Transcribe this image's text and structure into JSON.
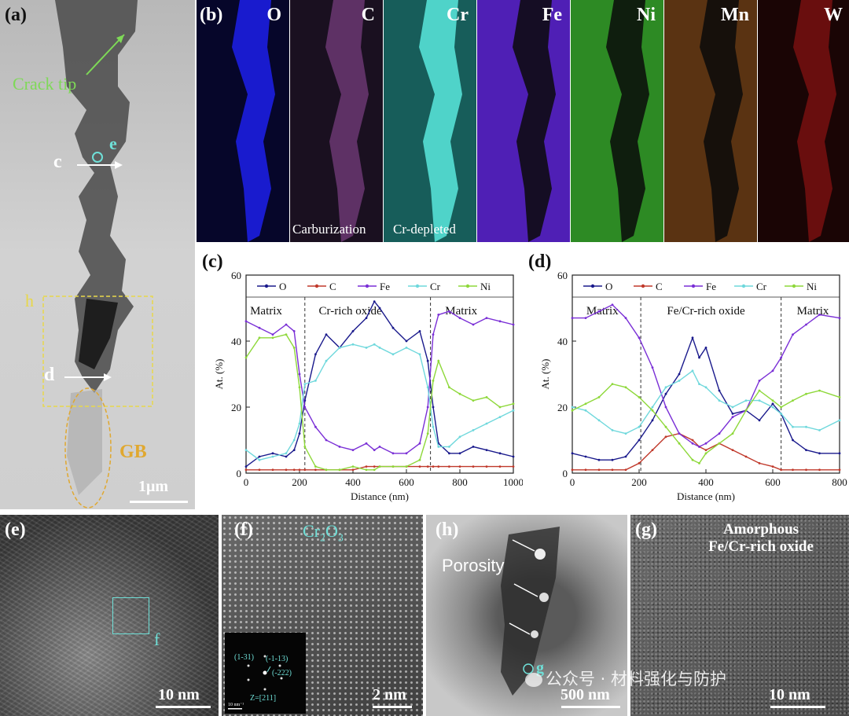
{
  "panel_a": {
    "label": "(a)",
    "crack_tip": "Crack tip",
    "marker_e": "e",
    "marker_c": "c",
    "marker_h": "h",
    "marker_d": "d",
    "gb": "GB",
    "scale": "1μm"
  },
  "panel_b": {
    "label": "(b)",
    "maps": [
      {
        "element": "O",
        "color": "#1c1ee0",
        "bg": "#06062a"
      },
      {
        "element": "C",
        "color": "#e070e8",
        "bg": "#1a1020"
      },
      {
        "element": "Cr",
        "color": "#55e0d5",
        "bg": "#175d5a"
      },
      {
        "element": "Fe",
        "color": "#8a3cf0",
        "bg": "#4f1fb5"
      },
      {
        "element": "Ni",
        "color": "#7ef54a",
        "bg": "#2d8a24"
      },
      {
        "element": "Mn",
        "color": "#e0962a",
        "bg": "#5a3312"
      },
      {
        "element": "W",
        "color": "#ff2020",
        "bg": "#1a0505"
      }
    ],
    "caption_c": "Carburization",
    "caption_cr": "Cr-depleted"
  },
  "panel_c": {
    "label": "(c)"
  },
  "panel_d": {
    "label": "(d)"
  },
  "panel_e": {
    "label": "(e)",
    "marker_f": "f",
    "scale": "10 nm"
  },
  "panel_f": {
    "label": "(f)",
    "phase_base": "Cr",
    "phase_sub1": "2",
    "phase_mid": "O",
    "phase_sub2": "3",
    "diff_spots": [
      "(1-31)",
      "(-1-13)",
      "(-222)"
    ],
    "zone": "Z=[211]",
    "inset_scale": "10 nm⁻¹",
    "scale": "2 nm"
  },
  "panel_h": {
    "label": "(h)",
    "porosity": "Porosity",
    "marker_g": "g",
    "scale": "500 nm"
  },
  "panel_g": {
    "label": "(g)",
    "title_line1": "Amorphous",
    "title_line2": "Fe/Cr-rich oxide",
    "scale": "10 nm"
  },
  "watermark": "公众号 · 材料强化与防护",
  "chart_data": [
    {
      "type": "line",
      "panel": "(c)",
      "xlabel": "Distance (nm)",
      "ylabel": "At. (%)",
      "xlim": [
        0,
        1000
      ],
      "ylim": [
        0,
        60
      ],
      "xticks": [
        0,
        200,
        400,
        600,
        800,
        1000
      ],
      "yticks": [
        0,
        20,
        40,
        60
      ],
      "legend_position": "top",
      "regions": [
        "Matrix",
        "Cr-rich oxide",
        "Matrix"
      ],
      "region_boundaries": [
        220,
        690
      ],
      "region_label_x": [
        75,
        390,
        805
      ],
      "x": [
        0,
        50,
        100,
        150,
        180,
        200,
        220,
        260,
        300,
        350,
        400,
        450,
        480,
        500,
        550,
        600,
        650,
        680,
        700,
        720,
        760,
        800,
        850,
        900,
        950,
        1000
      ],
      "series": [
        {
          "name": "O",
          "color": "#1a1a8c",
          "values": [
            2,
            5,
            6,
            5,
            7,
            12,
            22,
            36,
            42,
            38,
            43,
            47,
            52,
            50,
            44,
            40,
            43,
            34,
            20,
            9,
            6,
            6,
            8,
            7,
            6,
            5
          ]
        },
        {
          "name": "C",
          "color": "#c0392b",
          "values": [
            1,
            1,
            1,
            1,
            1,
            1,
            1,
            1,
            1,
            1,
            1,
            2,
            2,
            2,
            2,
            2,
            2,
            2,
            2,
            2,
            2,
            2,
            2,
            2,
            2,
            2
          ]
        },
        {
          "name": "Fe",
          "color": "#7a2fd6",
          "values": [
            46,
            44,
            42,
            45,
            43,
            30,
            20,
            14,
            10,
            8,
            7,
            9,
            7,
            8,
            6,
            6,
            9,
            20,
            42,
            48,
            49,
            47,
            45,
            47,
            46,
            45
          ]
        },
        {
          "name": "Cr",
          "color": "#6fd8dc",
          "values": [
            7,
            4,
            5,
            6,
            10,
            15,
            27,
            28,
            34,
            38,
            39,
            38,
            39,
            38,
            36,
            38,
            36,
            26,
            14,
            8,
            8,
            11,
            13,
            15,
            17,
            19
          ]
        },
        {
          "name": "Ni",
          "color": "#8ed83a",
          "values": [
            35,
            41,
            41,
            42,
            38,
            26,
            8,
            2,
            1,
            1,
            2,
            1,
            1,
            2,
            2,
            2,
            4,
            12,
            28,
            34,
            26,
            24,
            22,
            23,
            20,
            21
          ]
        }
      ]
    },
    {
      "type": "line",
      "panel": "(d)",
      "xlabel": "Distance (nm)",
      "ylabel": "At. (%)",
      "xlim": [
        0,
        800
      ],
      "ylim": [
        0,
        60
      ],
      "xticks": [
        0,
        200,
        400,
        600,
        800
      ],
      "yticks": [
        0,
        20,
        40,
        60
      ],
      "legend_position": "top",
      "regions": [
        "Matrix",
        "Fe/Cr-rich oxide",
        "Matrix"
      ],
      "region_boundaries": [
        205,
        625
      ],
      "region_label_x": [
        90,
        400,
        720
      ],
      "x": [
        0,
        40,
        80,
        120,
        160,
        200,
        240,
        280,
        320,
        360,
        380,
        400,
        440,
        480,
        520,
        560,
        600,
        625,
        660,
        700,
        740,
        800
      ],
      "series": [
        {
          "name": "O",
          "color": "#1a1a8c",
          "values": [
            6,
            5,
            4,
            4,
            5,
            10,
            16,
            24,
            30,
            41,
            35,
            38,
            25,
            18,
            19,
            16,
            21,
            18,
            10,
            7,
            6,
            6
          ]
        },
        {
          "name": "C",
          "color": "#c0392b",
          "values": [
            1,
            1,
            1,
            1,
            1,
            3,
            7,
            11,
            12,
            10,
            8,
            7,
            9,
            7,
            5,
            3,
            2,
            1,
            1,
            1,
            1,
            1
          ]
        },
        {
          "name": "Fe",
          "color": "#7a2fd6",
          "values": [
            47,
            47,
            49,
            51,
            47,
            41,
            32,
            20,
            12,
            9,
            8,
            9,
            12,
            17,
            19,
            28,
            31,
            35,
            42,
            45,
            48,
            47
          ]
        },
        {
          "name": "Cr",
          "color": "#6fd8dc",
          "values": [
            20,
            19,
            16,
            13,
            12,
            14,
            20,
            26,
            28,
            31,
            27,
            26,
            22,
            20,
            22,
            22,
            20,
            18,
            14,
            14,
            13,
            16
          ]
        },
        {
          "name": "Ni",
          "color": "#8ed83a",
          "values": [
            19,
            21,
            23,
            27,
            26,
            23,
            19,
            14,
            9,
            4,
            3,
            6,
            9,
            12,
            19,
            25,
            22,
            20,
            22,
            24,
            25,
            23
          ]
        }
      ]
    }
  ]
}
